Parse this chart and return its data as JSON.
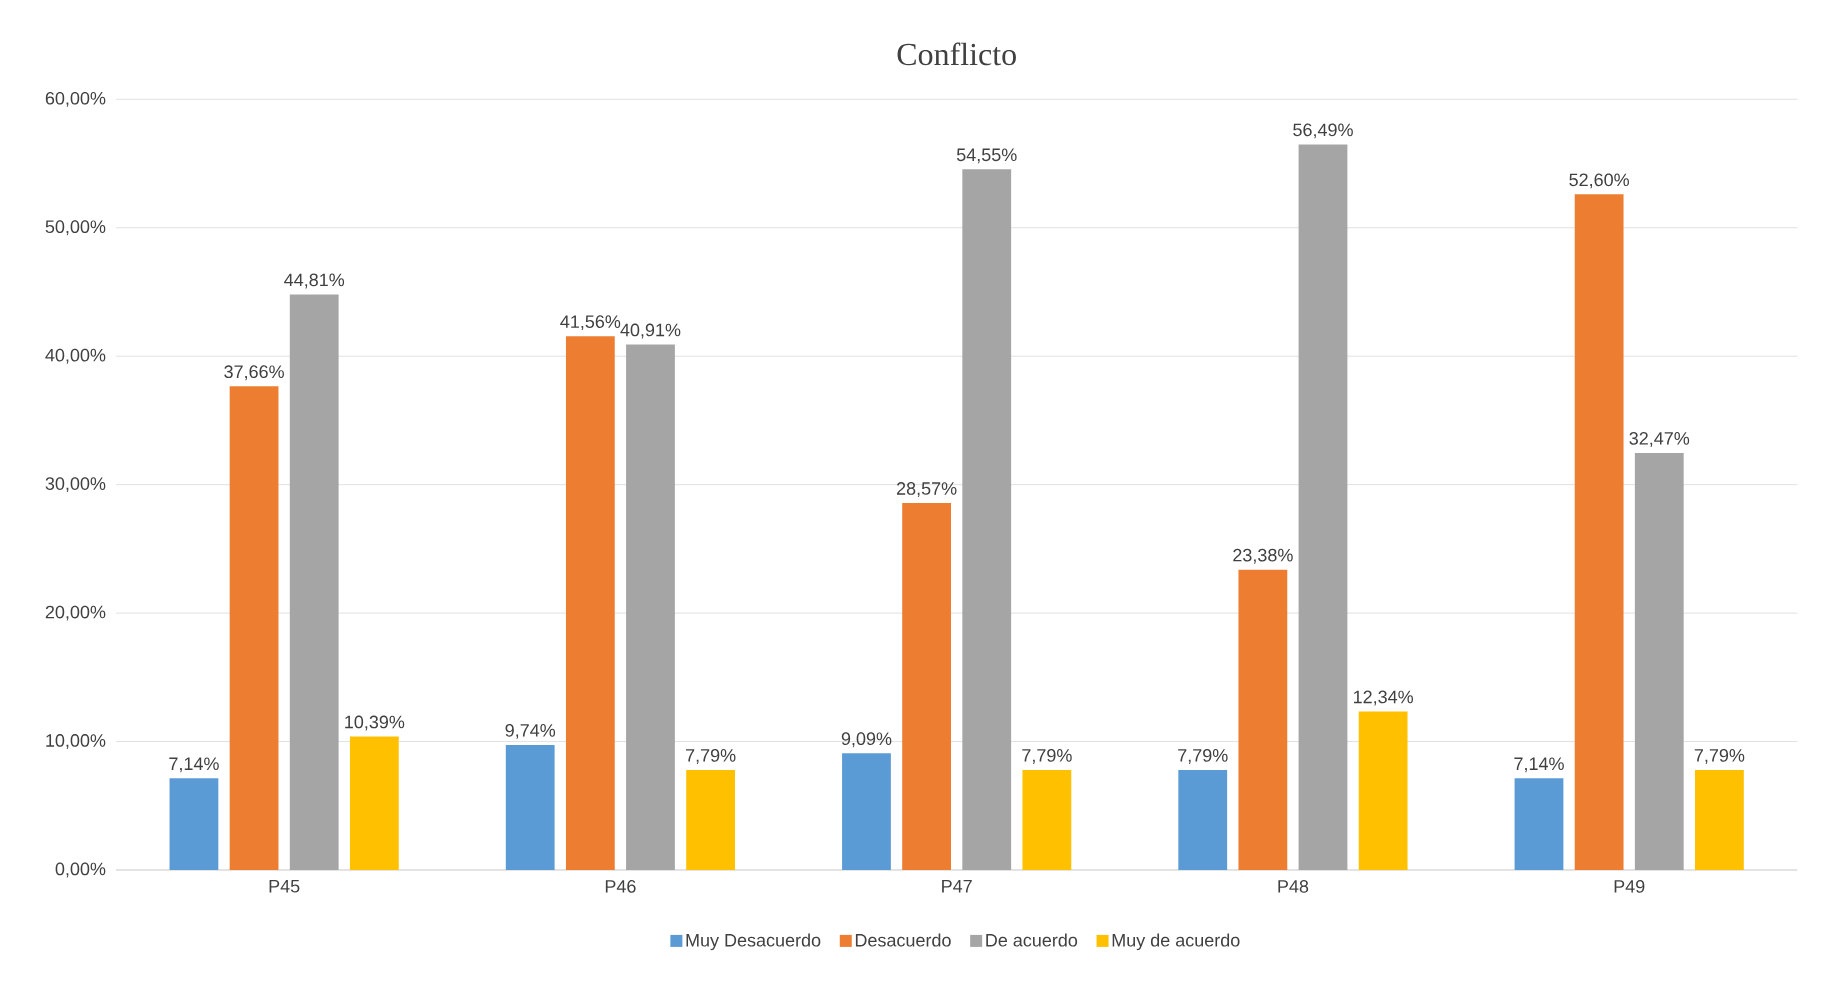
{
  "chart_data": {
    "type": "bar",
    "title": "Conflicto",
    "categories": [
      "P45",
      "P46",
      "P47",
      "P48",
      "P49"
    ],
    "series": [
      {
        "name": "Muy Desacuerdo",
        "color": "#5b9bd5",
        "values": [
          7.14,
          9.74,
          9.09,
          7.79,
          7.14
        ],
        "value_labels": [
          "7,14%",
          "9,74%",
          "9,09%",
          "7,79%",
          "7,14%"
        ]
      },
      {
        "name": "Desacuerdo",
        "color": "#ed7d31",
        "values": [
          37.66,
          41.56,
          28.57,
          23.38,
          52.6
        ],
        "value_labels": [
          "37,66%",
          "41,56%",
          "28,57%",
          "23,38%",
          "52,60%"
        ]
      },
      {
        "name": "De acuerdo",
        "color": "#a5a5a5",
        "values": [
          44.81,
          40.91,
          54.55,
          56.49,
          32.47
        ],
        "value_labels": [
          "44,81%",
          "40,91%",
          "54,55%",
          "56,49%",
          "32,47%"
        ]
      },
      {
        "name": "Muy de acuerdo",
        "color": "#ffc000",
        "values": [
          10.39,
          7.79,
          7.79,
          12.34,
          7.79
        ],
        "value_labels": [
          "10,39%",
          "7,79%",
          "7,79%",
          "12,34%",
          "7,79%"
        ]
      }
    ],
    "ylim": [
      0,
      60
    ],
    "yticks": [
      {
        "value": 0,
        "label": "0,00%"
      },
      {
        "value": 10,
        "label": "10,00%"
      },
      {
        "value": 20,
        "label": "20,00%"
      },
      {
        "value": 30,
        "label": "30,00%"
      },
      {
        "value": 40,
        "label": "40,00%"
      },
      {
        "value": 50,
        "label": "50,00%"
      },
      {
        "value": 60,
        "label": "60,00%"
      }
    ],
    "grid": "y",
    "legend": "bottom"
  }
}
